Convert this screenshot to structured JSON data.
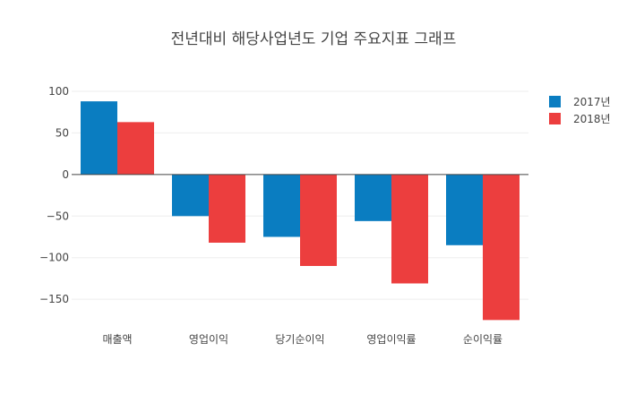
{
  "colors": {
    "series_2017": "#0a7dc1",
    "series_2018": "#ec3e3e"
  },
  "chart_data": {
    "type": "bar",
    "title": "전년대비 해당사업년도 기업 주요지표 그래프",
    "xlabel": "",
    "ylabel": "",
    "categories": [
      "매출액",
      "영업이익",
      "당기순이익",
      "영업이익률",
      "순이익률"
    ],
    "series": [
      {
        "name": "2017년",
        "values": [
          88,
          -50,
          -75,
          -56,
          -85
        ]
      },
      {
        "name": "2018년",
        "values": [
          63,
          -82,
          -110,
          -131,
          -175
        ]
      }
    ],
    "ylim": [
      -180,
      100
    ],
    "yticks": [
      100,
      50,
      0,
      -50,
      -100,
      -150
    ],
    "ytick_labels": [
      "100",
      "50",
      "0",
      "−50",
      "−100",
      "−150"
    ],
    "grid": true,
    "legend": "top-right"
  }
}
